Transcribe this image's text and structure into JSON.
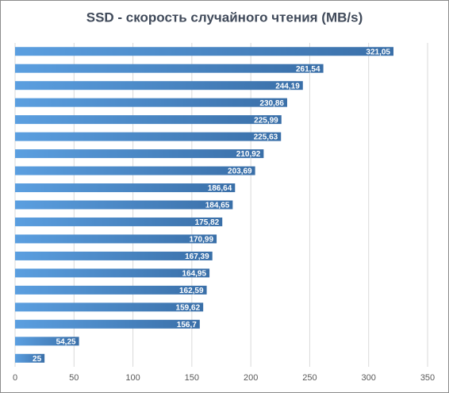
{
  "chart_data": {
    "type": "bar",
    "orientation": "horizontal",
    "title": "SSD - скорость случайного чтения (MB/s)",
    "categories": [
      null,
      null,
      null,
      null,
      null,
      null,
      null,
      null,
      null,
      null,
      null,
      null,
      null,
      null,
      null,
      null,
      null,
      null,
      null
    ],
    "values": [
      321.05,
      261.54,
      244.19,
      230.86,
      225.99,
      225.63,
      210.92,
      203.69,
      186.64,
      184.65,
      175.82,
      170.99,
      167.39,
      164.95,
      162.59,
      159.62,
      156.7,
      54.25,
      25
    ],
    "value_labels": [
      "321,05",
      "261,54",
      "244,19",
      "230,86",
      "225,99",
      "225,63",
      "210,92",
      "203,69",
      "186,64",
      "184,65",
      "175,82",
      "170,99",
      "167,39",
      "164,95",
      "162,59",
      "159,62",
      "156,7",
      "54,25",
      "25"
    ],
    "color": "#3a6fa8",
    "xlim": [
      0,
      350
    ],
    "xticks": [
      0,
      50,
      100,
      150,
      200,
      250,
      300,
      350
    ],
    "grid": true
  }
}
